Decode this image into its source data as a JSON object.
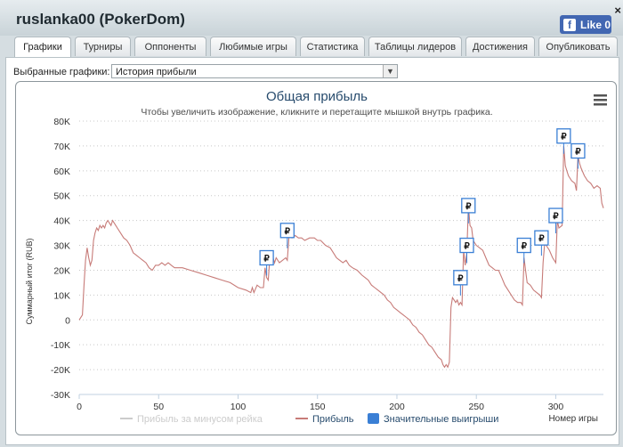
{
  "window": {
    "title": "ruslanka00 (PokerDom)",
    "close_glyph": "×",
    "like_label": "Like 0",
    "like_icon": "facebook-icon"
  },
  "tabs": [
    {
      "label": "Графики",
      "active": true
    },
    {
      "label": "Турниры"
    },
    {
      "label": "Оппоненты"
    },
    {
      "label": "Любимые игры"
    },
    {
      "label": "Статистика"
    },
    {
      "label": "Таблицы лидеров"
    },
    {
      "label": "Достижения"
    },
    {
      "label": "Опубликовать"
    }
  ],
  "selector": {
    "label": "Выбранные графики:",
    "value": "История прибыли"
  },
  "chart_data": {
    "type": "line",
    "title": "Общая прибыль",
    "subtitle": "Чтобы увеличить изображение, кликните и перетащите мышкой внутрь графика.",
    "ylabel": "Суммарный итог (RUB)",
    "xlabel": "Номер игры",
    "xlim": [
      0,
      330
    ],
    "ylim": [
      -30000,
      80000
    ],
    "x_ticks": [
      "0",
      "50",
      "100",
      "150",
      "200",
      "250",
      "300"
    ],
    "y_ticks": [
      "-30K",
      "-20K",
      "-10K",
      "0",
      "10K",
      "20K",
      "30K",
      "40K",
      "50K",
      "60K",
      "70K",
      "80K"
    ],
    "grid": "horizontal dotted",
    "series": [
      {
        "name": "Прибыль за минусом рейка",
        "color": "#cccccc",
        "hidden": true
      },
      {
        "name": "Прибыль",
        "color": "#c77b78",
        "points": [
          [
            0,
            0
          ],
          [
            2,
            2000
          ],
          [
            3,
            14000
          ],
          [
            4,
            24000
          ],
          [
            5,
            29000
          ],
          [
            6,
            25000
          ],
          [
            7,
            22000
          ],
          [
            8,
            24000
          ],
          [
            9,
            32000
          ],
          [
            10,
            35000
          ],
          [
            11,
            37000
          ],
          [
            12,
            36000
          ],
          [
            13,
            38000
          ],
          [
            14,
            37000
          ],
          [
            15,
            38000
          ],
          [
            16,
            37000
          ],
          [
            17,
            39000
          ],
          [
            18,
            40000
          ],
          [
            19,
            39000
          ],
          [
            20,
            38000
          ],
          [
            21,
            40000
          ],
          [
            22,
            39000
          ],
          [
            24,
            37000
          ],
          [
            26,
            35000
          ],
          [
            28,
            33000
          ],
          [
            30,
            32000
          ],
          [
            32,
            30000
          ],
          [
            34,
            27000
          ],
          [
            36,
            26000
          ],
          [
            38,
            25000
          ],
          [
            40,
            24000
          ],
          [
            42,
            23000
          ],
          [
            44,
            21000
          ],
          [
            46,
            20000
          ],
          [
            48,
            22000
          ],
          [
            50,
            22000
          ],
          [
            52,
            23000
          ],
          [
            54,
            22000
          ],
          [
            56,
            23000
          ],
          [
            58,
            22000
          ],
          [
            60,
            21000
          ],
          [
            65,
            21000
          ],
          [
            70,
            20000
          ],
          [
            75,
            19000
          ],
          [
            80,
            18000
          ],
          [
            85,
            17000
          ],
          [
            90,
            16000
          ],
          [
            95,
            15000
          ],
          [
            100,
            13000
          ],
          [
            105,
            12000
          ],
          [
            108,
            11000
          ],
          [
            109,
            13000
          ],
          [
            110,
            11000
          ],
          [
            112,
            14000
          ],
          [
            114,
            13000
          ],
          [
            116,
            13000
          ],
          [
            117,
            21000
          ],
          [
            118,
            17000
          ],
          [
            119,
            16000
          ],
          [
            120,
            25000
          ],
          [
            121,
            28000
          ],
          [
            122,
            25000
          ],
          [
            123,
            23000
          ],
          [
            124,
            25000
          ],
          [
            126,
            23000
          ],
          [
            128,
            24000
          ],
          [
            130,
            25000
          ],
          [
            131,
            24000
          ],
          [
            132,
            33000
          ],
          [
            133,
            36000
          ],
          [
            134,
            33000
          ],
          [
            136,
            34000
          ],
          [
            138,
            33000
          ],
          [
            140,
            33000
          ],
          [
            142,
            32000
          ],
          [
            145,
            33000
          ],
          [
            148,
            33000
          ],
          [
            150,
            32000
          ],
          [
            152,
            32000
          ],
          [
            155,
            30000
          ],
          [
            158,
            29000
          ],
          [
            160,
            27000
          ],
          [
            162,
            25000
          ],
          [
            164,
            24000
          ],
          [
            166,
            23000
          ],
          [
            168,
            24000
          ],
          [
            170,
            22000
          ],
          [
            172,
            21000
          ],
          [
            175,
            20000
          ],
          [
            178,
            18000
          ],
          [
            180,
            17000
          ],
          [
            182,
            16000
          ],
          [
            184,
            14000
          ],
          [
            186,
            13000
          ],
          [
            188,
            12000
          ],
          [
            190,
            11000
          ],
          [
            192,
            10000
          ],
          [
            194,
            8000
          ],
          [
            196,
            7000
          ],
          [
            198,
            5000
          ],
          [
            200,
            4000
          ],
          [
            202,
            3000
          ],
          [
            204,
            2000
          ],
          [
            206,
            1000
          ],
          [
            208,
            0
          ],
          [
            210,
            -2000
          ],
          [
            212,
            -3000
          ],
          [
            214,
            -5000
          ],
          [
            216,
            -6000
          ],
          [
            218,
            -8000
          ],
          [
            220,
            -10000
          ],
          [
            222,
            -11000
          ],
          [
            224,
            -13000
          ],
          [
            226,
            -15000
          ],
          [
            228,
            -16000
          ],
          [
            229,
            -18000
          ],
          [
            230,
            -19000
          ],
          [
            231,
            -18000
          ],
          [
            232,
            -19000
          ],
          [
            233,
            -17000
          ],
          [
            234,
            5000
          ],
          [
            235,
            9000
          ],
          [
            236,
            8000
          ],
          [
            237,
            7000
          ],
          [
            238,
            8000
          ],
          [
            239,
            6000
          ],
          [
            240,
            7000
          ],
          [
            241,
            6000
          ],
          [
            242,
            28000
          ],
          [
            243,
            22000
          ],
          [
            244,
            27000
          ],
          [
            245,
            46000
          ],
          [
            246,
            38000
          ],
          [
            247,
            37000
          ],
          [
            248,
            32000
          ],
          [
            250,
            30000
          ],
          [
            252,
            29000
          ],
          [
            254,
            28000
          ],
          [
            256,
            25000
          ],
          [
            258,
            22000
          ],
          [
            260,
            21000
          ],
          [
            262,
            20000
          ],
          [
            264,
            20000
          ],
          [
            266,
            17000
          ],
          [
            268,
            14000
          ],
          [
            270,
            12000
          ],
          [
            272,
            10000
          ],
          [
            274,
            8000
          ],
          [
            276,
            7000
          ],
          [
            278,
            7000
          ],
          [
            279,
            6000
          ],
          [
            280,
            25000
          ],
          [
            281,
            20000
          ],
          [
            282,
            15000
          ],
          [
            284,
            14000
          ],
          [
            286,
            12000
          ],
          [
            288,
            11000
          ],
          [
            290,
            10000
          ],
          [
            291,
            9000
          ],
          [
            292,
            23000
          ],
          [
            293,
            31000
          ],
          [
            294,
            30000
          ],
          [
            296,
            28000
          ],
          [
            298,
            25000
          ],
          [
            300,
            23000
          ],
          [
            301,
            40000
          ],
          [
            302,
            37000
          ],
          [
            304,
            38000
          ],
          [
            305,
            70000
          ],
          [
            306,
            62000
          ],
          [
            307,
            60000
          ],
          [
            308,
            58000
          ],
          [
            310,
            56000
          ],
          [
            312,
            55000
          ],
          [
            313,
            52000
          ],
          [
            314,
            66000
          ],
          [
            315,
            63000
          ],
          [
            316,
            61000
          ],
          [
            318,
            58000
          ],
          [
            320,
            56000
          ],
          [
            322,
            55000
          ],
          [
            324,
            53000
          ],
          [
            326,
            54000
          ],
          [
            328,
            53000
          ],
          [
            329,
            47000
          ],
          [
            330,
            45000
          ]
        ]
      }
    ],
    "significant_wins": {
      "name": "Значительные выигрыши",
      "color": "#3a7fd5",
      "icon": "ruble-flag-icon",
      "label": "₽",
      "points": [
        [
          118,
          25000
        ],
        [
          131,
          36000
        ],
        [
          240,
          17000
        ],
        [
          244,
          30000
        ],
        [
          245,
          46000
        ],
        [
          280,
          30000
        ],
        [
          291,
          33000
        ],
        [
          300,
          42000
        ],
        [
          305,
          74000
        ],
        [
          314,
          68000
        ]
      ]
    }
  }
}
